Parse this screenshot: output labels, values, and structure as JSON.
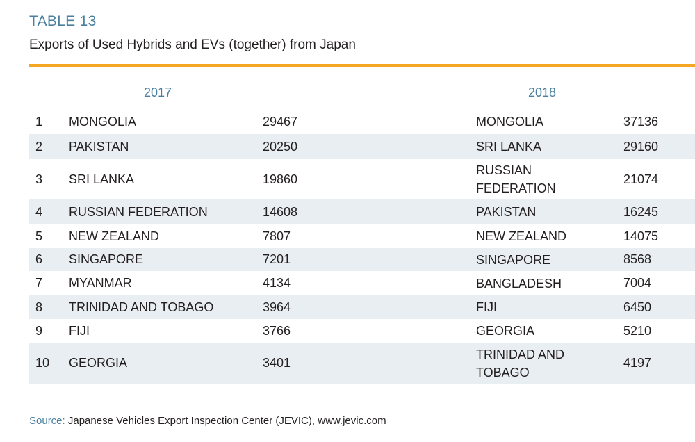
{
  "table_label": "TABLE 13",
  "title": "Exports of Used Hybrids and EVs (together) from Japan",
  "years": {
    "y2017": "2017",
    "y2018": "2018"
  },
  "rows": [
    {
      "rank": "1",
      "country_2017": "MONGOLIA",
      "value_2017": "29467",
      "country_2018": "MONGOLIA",
      "value_2018": "37136"
    },
    {
      "rank": "2",
      "country_2017": "PAKISTAN",
      "value_2017": "20250",
      "country_2018": "SRI LANKA",
      "value_2018": "29160"
    },
    {
      "rank": "3",
      "country_2017": "SRI LANKA",
      "value_2017": "19860",
      "country_2018": "RUSSIAN FEDERATION",
      "value_2018": "21074"
    },
    {
      "rank": "4",
      "country_2017": "RUSSIAN FEDERATION",
      "value_2017": "14608",
      "country_2018": "PAKISTAN",
      "value_2018": "16245"
    },
    {
      "rank": "5",
      "country_2017": "NEW ZEALAND",
      "value_2017": "7807",
      "country_2018": "NEW ZEALAND",
      "value_2018": "14075"
    },
    {
      "rank": "6",
      "country_2017": "SINGAPORE",
      "value_2017": "7201",
      "country_2018": "SINGAPORE",
      "value_2018": "8568"
    },
    {
      "rank": "7",
      "country_2017": "MYANMAR",
      "value_2017": "4134",
      "country_2018": "BANGLADESH",
      "value_2018": "7004"
    },
    {
      "rank": "8",
      "country_2017": "TRINIDAD AND TOBAGO",
      "value_2017": "3964",
      "country_2018": "FIJI",
      "value_2018": "6450"
    },
    {
      "rank": "9",
      "country_2017": "FIJI",
      "value_2017": "3766",
      "country_2018": "GEORGIA",
      "value_2018": "5210"
    },
    {
      "rank": "10",
      "country_2017": "GEORGIA",
      "value_2017": "3401",
      "country_2018": "TRINIDAD AND TOBAGO",
      "value_2018": "4197"
    }
  ],
  "source": {
    "label": "Source:",
    "text": "Japanese Vehicles Export Inspection Center (JEVIC),",
    "url": "www.jevic.com"
  },
  "colors": {
    "accent_rule": "#f5a623",
    "header_blue": "#4a7fa0",
    "row_shade": "#e9eef2"
  }
}
